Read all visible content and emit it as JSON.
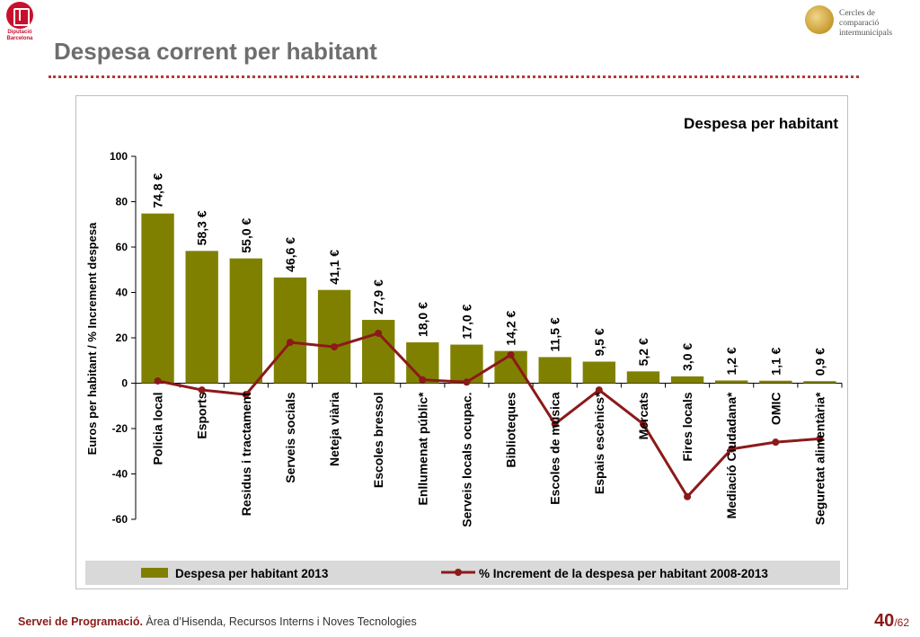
{
  "header": {
    "title": "Despesa corrent per habitant",
    "logo_left": {
      "icon": "diputacio-barcelona-logo",
      "line1": "Diputació",
      "line2": "Barcelona"
    },
    "logo_right": {
      "icon": "cercles-globe-logo",
      "line1": "Cercles de comparació",
      "line2": "intermunicipals"
    }
  },
  "footer": {
    "org": "Servei de Programació.",
    "area": " Àrea d’Hisenda, Recursos Interns i Noves Tecnologies",
    "page": "40",
    "total": "/62"
  },
  "colors": {
    "bar": "#808000",
    "line": "#8b1a1a",
    "legend_bg": "#d9d9d9"
  },
  "chart_data": {
    "type": "bar",
    "title": "Despesa per habitant",
    "ylabel": "Euros per habitant / % Increment despesa",
    "ylim": [
      -60,
      100
    ],
    "yticks": [
      100,
      80,
      60,
      40,
      20,
      0,
      -20,
      -40,
      -60
    ],
    "categories": [
      "Policia local",
      "Esports",
      "Residus i tractament",
      "Serveis socials",
      "Neteja viària",
      "Escoles bressol",
      "Enllumenat públic*",
      "Serveis locals ocupac.",
      "Biblioteques",
      "Escoles de música",
      "Espais escènics*",
      "Mercats",
      "Fires locals",
      "Mediació Ciudadana*",
      "OMIC",
      "Seguretat alimentària*"
    ],
    "series": [
      {
        "name": "Despesa per habitant 2013",
        "kind": "bar",
        "values": [
          74.8,
          58.3,
          55.0,
          46.6,
          41.1,
          27.9,
          18.0,
          17.0,
          14.2,
          11.5,
          9.5,
          5.2,
          3.0,
          1.2,
          1.1,
          0.9
        ],
        "labels": [
          "74,8 €",
          "58,3 €",
          "55,0 €",
          "46,6 €",
          "41,1 €",
          "27,9 €",
          "18,0 €",
          "17,0 €",
          "14,2 €",
          "11,5 €",
          "9,5 €",
          "5,2 €",
          "3,0 €",
          "1,2 €",
          "1,1 €",
          "0,9 €"
        ]
      },
      {
        "name": "% Increment de la despesa per habitant 2008-2013",
        "kind": "line",
        "values": [
          1,
          -3,
          -5,
          18,
          16,
          22,
          1.5,
          0.5,
          12.5,
          -18,
          -3,
          -18,
          -50,
          -29,
          -26,
          -24.5
        ]
      }
    ],
    "legend_position": "bottom",
    "grid": false
  }
}
